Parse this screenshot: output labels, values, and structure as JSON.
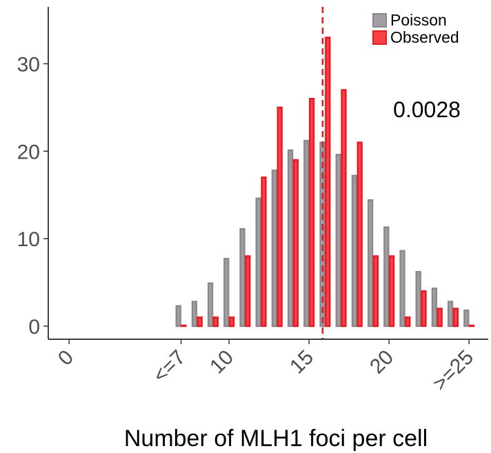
{
  "chart_data": {
    "type": "bar",
    "xlabel": "Number of MLH1 foci per cell",
    "ylabel": "",
    "ylim": [
      -1.5,
      36.5
    ],
    "xlim": [
      -1.3,
      26.2
    ],
    "x_ticks": [
      {
        "value": 0,
        "label": "0"
      },
      {
        "value": 7,
        "label": "<=7"
      },
      {
        "value": 10,
        "label": "10"
      },
      {
        "value": 15,
        "label": "15"
      },
      {
        "value": 20,
        "label": "20"
      },
      {
        "value": 25,
        "label": ">=25"
      }
    ],
    "y_ticks": [
      0,
      10,
      20,
      30
    ],
    "categories": [
      7,
      8,
      9,
      10,
      11,
      12,
      13,
      14,
      15,
      16,
      17,
      18,
      19,
      20,
      21,
      22,
      23,
      24,
      25
    ],
    "series": [
      {
        "name": "Poisson",
        "color": "#a39ea3",
        "stroke": "#8c878c",
        "values": [
          2.3,
          2.8,
          4.9,
          7.7,
          11.1,
          14.6,
          17.8,
          20.1,
          21.2,
          21.0,
          19.6,
          17.2,
          14.4,
          11.3,
          8.6,
          6.2,
          4.3,
          2.8,
          1.8
        ]
      },
      {
        "name": "Observed",
        "color": "#f94146",
        "stroke": "#e31b23",
        "values": [
          0,
          1,
          1,
          1,
          8,
          17,
          25,
          19,
          26,
          33,
          27,
          21,
          8,
          8,
          1,
          4,
          2,
          2,
          0
        ]
      }
    ],
    "mean_line": {
      "value": 15.85,
      "color": "#e31b23",
      "style": "dashed"
    },
    "annotation": "0.0028",
    "legend_position": "top-right",
    "grid": false
  }
}
